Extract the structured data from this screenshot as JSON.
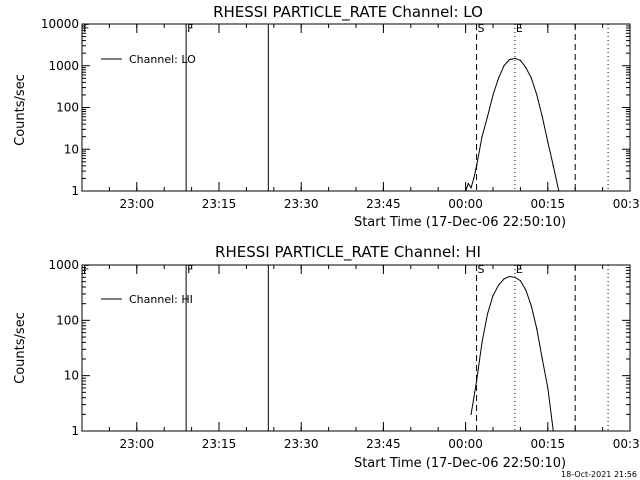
{
  "footer_timestamp": "18-Oct-2021 21:56",
  "chart_data": [
    {
      "type": "line",
      "title": "RHESSI PARTICLE_RATE Channel: LO",
      "xlabel": "Start Time (17-Dec-06 22:50:10)",
      "ylabel": "Counts/sec",
      "y_scale": "log",
      "ylim": [
        1,
        10000
      ],
      "y_ticks": [
        "1",
        "10",
        "100",
        "1000",
        "10000"
      ],
      "x_ticks": [
        "23:00",
        "23:15",
        "23:30",
        "23:45",
        "00:00",
        "00:15",
        "00:30"
      ],
      "x_tick_minutes": [
        10,
        25,
        40,
        55,
        70,
        85,
        100
      ],
      "xlim_minutes": [
        0,
        100
      ],
      "legend": {
        "entry": "Channel: LO",
        "placement": "top-left"
      },
      "series": [
        {
          "name": "Channel: LO",
          "points": [
            [
              "00:00",
              1
            ],
            [
              "00:00:30",
              1.5
            ],
            [
              "00:01",
              1.2
            ],
            [
              "00:01:30",
              2
            ],
            [
              "00:02",
              4
            ],
            [
              "00:03",
              20
            ],
            [
              "00:04",
              60
            ],
            [
              "00:05",
              200
            ],
            [
              "00:06",
              500
            ],
            [
              "00:07",
              1000
            ],
            [
              "00:08",
              1400
            ],
            [
              "00:09",
              1500
            ],
            [
              "00:10",
              1350
            ],
            [
              "00:11",
              900
            ],
            [
              "00:12",
              500
            ],
            [
              "00:13",
              200
            ],
            [
              "00:14",
              60
            ],
            [
              "00:15",
              15
            ],
            [
              "00:16",
              4
            ],
            [
              "00:17",
              1
            ]
          ]
        }
      ],
      "markers": [
        {
          "label": "F",
          "time": "22:50",
          "style": "dotted"
        },
        {
          "label": "F",
          "time": "23:09",
          "style": "solid"
        },
        {
          "label": "",
          "time": "23:24",
          "style": "solid"
        },
        {
          "label": "S",
          "time": "00:02",
          "style": "dashed"
        },
        {
          "label": "E",
          "time": "00:09",
          "style": "dotted"
        },
        {
          "label": "",
          "time": "00:20",
          "style": "dashed"
        },
        {
          "label": "",
          "time": "00:26",
          "style": "dotted"
        }
      ]
    },
    {
      "type": "line",
      "title": "RHESSI PARTICLE_RATE Channel: HI",
      "xlabel": "Start Time (17-Dec-06 22:50:10)",
      "ylabel": "Counts/sec",
      "y_scale": "log",
      "ylim": [
        1,
        1000
      ],
      "y_ticks": [
        "1",
        "10",
        "100",
        "1000"
      ],
      "x_ticks": [
        "23:00",
        "23:15",
        "23:30",
        "23:45",
        "00:00",
        "00:15",
        "00:30"
      ],
      "x_tick_minutes": [
        10,
        25,
        40,
        55,
        70,
        85,
        100
      ],
      "xlim_minutes": [
        0,
        100
      ],
      "legend": {
        "entry": "Channel: HI",
        "placement": "top-left"
      },
      "series": [
        {
          "name": "Channel: HI",
          "points": [
            [
              "00:01",
              2
            ],
            [
              "00:02",
              8
            ],
            [
              "00:03",
              40
            ],
            [
              "00:04",
              130
            ],
            [
              "00:05",
              280
            ],
            [
              "00:06",
              430
            ],
            [
              "00:07",
              560
            ],
            [
              "00:08",
              620
            ],
            [
              "00:09",
              600
            ],
            [
              "00:10",
              520
            ],
            [
              "00:11",
              350
            ],
            [
              "00:12",
              180
            ],
            [
              "00:13",
              70
            ],
            [
              "00:14",
              20
            ],
            [
              "00:15",
              6
            ],
            [
              "00:16",
              1
            ]
          ]
        }
      ],
      "markers": [
        {
          "label": "F",
          "time": "22:50",
          "style": "dotted"
        },
        {
          "label": "F",
          "time": "23:09",
          "style": "solid"
        },
        {
          "label": "",
          "time": "23:24",
          "style": "solid"
        },
        {
          "label": "S",
          "time": "00:02",
          "style": "dashed"
        },
        {
          "label": "E",
          "time": "00:09",
          "style": "dotted"
        },
        {
          "label": "",
          "time": "00:20",
          "style": "dashed"
        },
        {
          "label": "",
          "time": "00:26",
          "style": "dotted"
        }
      ]
    }
  ]
}
